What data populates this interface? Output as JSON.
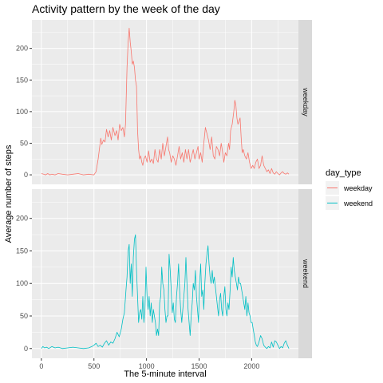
{
  "chart_data": {
    "type": "line",
    "title": "Activity pattern by the week of the day",
    "xlabel": "The 5-minute interval",
    "ylabel": "Average number of steps",
    "xlim": [
      -90,
      2445
    ],
    "ylim": [
      -15,
      245
    ],
    "x_ticks": [
      0,
      500,
      1000,
      1500,
      2000
    ],
    "y_ticks": [
      0,
      50,
      100,
      150,
      200
    ],
    "grid": true,
    "legend": {
      "title": "day_type",
      "position": "right"
    },
    "facets": [
      "weekday",
      "weekend"
    ],
    "series": [
      {
        "name": "weekday",
        "color": "#F8766D",
        "points": [
          [
            0,
            2
          ],
          [
            20,
            1
          ],
          [
            40,
            0
          ],
          [
            60,
            2
          ],
          [
            80,
            0
          ],
          [
            100,
            1
          ],
          [
            130,
            0
          ],
          [
            160,
            2
          ],
          [
            200,
            1
          ],
          [
            250,
            0
          ],
          [
            300,
            1
          ],
          [
            350,
            2
          ],
          [
            400,
            0
          ],
          [
            450,
            1
          ],
          [
            500,
            0
          ],
          [
            520,
            5
          ],
          [
            540,
            25
          ],
          [
            555,
            45
          ],
          [
            565,
            58
          ],
          [
            575,
            48
          ],
          [
            590,
            55
          ],
          [
            605,
            52
          ],
          [
            620,
            72
          ],
          [
            635,
            60
          ],
          [
            650,
            70
          ],
          [
            665,
            55
          ],
          [
            680,
            75
          ],
          [
            700,
            62
          ],
          [
            715,
            70
          ],
          [
            730,
            55
          ],
          [
            745,
            80
          ],
          [
            760,
            70
          ],
          [
            775,
            75
          ],
          [
            790,
            60
          ],
          [
            800,
            80
          ],
          [
            815,
            170
          ],
          [
            825,
            210
          ],
          [
            835,
            232
          ],
          [
            845,
            210
          ],
          [
            855,
            195
          ],
          [
            865,
            175
          ],
          [
            875,
            180
          ],
          [
            885,
            170
          ],
          [
            895,
            150
          ],
          [
            905,
            140
          ],
          [
            915,
            70
          ],
          [
            925,
            40
          ],
          [
            935,
            25
          ],
          [
            945,
            30
          ],
          [
            955,
            20
          ],
          [
            965,
            15
          ],
          [
            975,
            25
          ],
          [
            990,
            30
          ],
          [
            1005,
            20
          ],
          [
            1020,
            38
          ],
          [
            1035,
            20
          ],
          [
            1050,
            25
          ],
          [
            1065,
            18
          ],
          [
            1080,
            40
          ],
          [
            1095,
            25
          ],
          [
            1110,
            20
          ],
          [
            1125,
            40
          ],
          [
            1140,
            25
          ],
          [
            1155,
            50
          ],
          [
            1170,
            30
          ],
          [
            1185,
            45
          ],
          [
            1200,
            60
          ],
          [
            1210,
            40
          ],
          [
            1220,
            35
          ],
          [
            1235,
            20
          ],
          [
            1250,
            30
          ],
          [
            1265,
            25
          ],
          [
            1280,
            15
          ],
          [
            1295,
            30
          ],
          [
            1310,
            45
          ],
          [
            1325,
            25
          ],
          [
            1340,
            35
          ],
          [
            1355,
            20
          ],
          [
            1370,
            40
          ],
          [
            1385,
            25
          ],
          [
            1400,
            40
          ],
          [
            1415,
            20
          ],
          [
            1430,
            30
          ],
          [
            1445,
            40
          ],
          [
            1460,
            25
          ],
          [
            1475,
            35
          ],
          [
            1490,
            45
          ],
          [
            1500,
            25
          ],
          [
            1515,
            35
          ],
          [
            1530,
            20
          ],
          [
            1545,
            50
          ],
          [
            1560,
            75
          ],
          [
            1575,
            65
          ],
          [
            1590,
            55
          ],
          [
            1605,
            40
          ],
          [
            1620,
            60
          ],
          [
            1635,
            30
          ],
          [
            1650,
            25
          ],
          [
            1665,
            45
          ],
          [
            1680,
            40
          ],
          [
            1695,
            30
          ],
          [
            1710,
            50
          ],
          [
            1720,
            40
          ],
          [
            1735,
            20
          ],
          [
            1750,
            35
          ],
          [
            1765,
            30
          ],
          [
            1780,
            50
          ],
          [
            1790,
            40
          ],
          [
            1800,
            70
          ],
          [
            1815,
            80
          ],
          [
            1830,
            100
          ],
          [
            1840,
            118
          ],
          [
            1850,
            110
          ],
          [
            1860,
            90
          ],
          [
            1870,
            80
          ],
          [
            1880,
            85
          ],
          [
            1890,
            90
          ],
          [
            1900,
            60
          ],
          [
            1910,
            35
          ],
          [
            1920,
            40
          ],
          [
            1935,
            30
          ],
          [
            1950,
            25
          ],
          [
            1965,
            35
          ],
          [
            1980,
            20
          ],
          [
            1995,
            10
          ],
          [
            2010,
            15
          ],
          [
            2025,
            10
          ],
          [
            2040,
            20
          ],
          [
            2055,
            25
          ],
          [
            2070,
            10
          ],
          [
            2085,
            15
          ],
          [
            2100,
            30
          ],
          [
            2115,
            15
          ],
          [
            2130,
            10
          ],
          [
            2145,
            5
          ],
          [
            2160,
            8
          ],
          [
            2175,
            2
          ],
          [
            2190,
            10
          ],
          [
            2205,
            3
          ],
          [
            2220,
            1
          ],
          [
            2235,
            5
          ],
          [
            2250,
            2
          ],
          [
            2265,
            0
          ],
          [
            2280,
            3
          ],
          [
            2295,
            5
          ],
          [
            2310,
            2
          ],
          [
            2325,
            1
          ],
          [
            2340,
            3
          ],
          [
            2355,
            1
          ]
        ]
      },
      {
        "name": "weekend",
        "color": "#00BFC4",
        "points": [
          [
            0,
            0
          ],
          [
            15,
            3
          ],
          [
            30,
            1
          ],
          [
            50,
            2
          ],
          [
            70,
            0
          ],
          [
            100,
            3
          ],
          [
            130,
            1
          ],
          [
            160,
            2
          ],
          [
            200,
            0
          ],
          [
            250,
            1
          ],
          [
            300,
            2
          ],
          [
            350,
            1
          ],
          [
            400,
            0
          ],
          [
            450,
            1
          ],
          [
            480,
            3
          ],
          [
            500,
            5
          ],
          [
            520,
            8
          ],
          [
            540,
            3
          ],
          [
            560,
            5
          ],
          [
            580,
            2
          ],
          [
            600,
            8
          ],
          [
            620,
            12
          ],
          [
            640,
            5
          ],
          [
            660,
            10
          ],
          [
            680,
            8
          ],
          [
            700,
            15
          ],
          [
            720,
            25
          ],
          [
            740,
            18
          ],
          [
            760,
            30
          ],
          [
            775,
            45
          ],
          [
            790,
            55
          ],
          [
            805,
            90
          ],
          [
            815,
            110
          ],
          [
            825,
            150
          ],
          [
            835,
            160
          ],
          [
            845,
            100
          ],
          [
            855,
            130
          ],
          [
            865,
            80
          ],
          [
            875,
            140
          ],
          [
            885,
            168
          ],
          [
            895,
            175
          ],
          [
            905,
            120
          ],
          [
            915,
            80
          ],
          [
            925,
            40
          ],
          [
            935,
            55
          ],
          [
            945,
            60
          ],
          [
            955,
            45
          ],
          [
            965,
            80
          ],
          [
            975,
            40
          ],
          [
            985,
            60
          ],
          [
            995,
            125
          ],
          [
            1005,
            80
          ],
          [
            1015,
            60
          ],
          [
            1025,
            80
          ],
          [
            1035,
            50
          ],
          [
            1045,
            70
          ],
          [
            1055,
            40
          ],
          [
            1065,
            60
          ],
          [
            1075,
            50
          ],
          [
            1085,
            40
          ],
          [
            1095,
            20
          ],
          [
            1105,
            30
          ],
          [
            1115,
            20
          ],
          [
            1125,
            70
          ],
          [
            1135,
            80
          ],
          [
            1145,
            125
          ],
          [
            1155,
            100
          ],
          [
            1165,
            90
          ],
          [
            1175,
            60
          ],
          [
            1185,
            40
          ],
          [
            1195,
            50
          ],
          [
            1205,
            50
          ],
          [
            1215,
            145
          ],
          [
            1225,
            120
          ],
          [
            1235,
            90
          ],
          [
            1245,
            55
          ],
          [
            1255,
            70
          ],
          [
            1265,
            45
          ],
          [
            1275,
            40
          ],
          [
            1285,
            80
          ],
          [
            1295,
            100
          ],
          [
            1305,
            130
          ],
          [
            1315,
            90
          ],
          [
            1325,
            60
          ],
          [
            1335,
            40
          ],
          [
            1345,
            60
          ],
          [
            1355,
            80
          ],
          [
            1365,
            100
          ],
          [
            1375,
            140
          ],
          [
            1385,
            100
          ],
          [
            1395,
            60
          ],
          [
            1405,
            40
          ],
          [
            1415,
            20
          ],
          [
            1425,
            50
          ],
          [
            1435,
            70
          ],
          [
            1445,
            100
          ],
          [
            1455,
            90
          ],
          [
            1465,
            120
          ],
          [
            1475,
            80
          ],
          [
            1485,
            60
          ],
          [
            1495,
            40
          ],
          [
            1505,
            100
          ],
          [
            1515,
            130
          ],
          [
            1525,
            80
          ],
          [
            1535,
            90
          ],
          [
            1545,
            60
          ],
          [
            1555,
            100
          ],
          [
            1565,
            130
          ],
          [
            1575,
            145
          ],
          [
            1585,
            158
          ],
          [
            1595,
            130
          ],
          [
            1605,
            110
          ],
          [
            1615,
            100
          ],
          [
            1625,
            120
          ],
          [
            1635,
            100
          ],
          [
            1645,
            110
          ],
          [
            1655,
            95
          ],
          [
            1665,
            80
          ],
          [
            1675,
            65
          ],
          [
            1685,
            50
          ],
          [
            1695,
            75
          ],
          [
            1705,
            85
          ],
          [
            1715,
            60
          ],
          [
            1725,
            50
          ],
          [
            1735,
            80
          ],
          [
            1745,
            95
          ],
          [
            1755,
            60
          ],
          [
            1765,
            50
          ],
          [
            1775,
            70
          ],
          [
            1785,
            60
          ],
          [
            1795,
            90
          ],
          [
            1805,
            125
          ],
          [
            1815,
            110
          ],
          [
            1825,
            140
          ],
          [
            1835,
            120
          ],
          [
            1845,
            110
          ],
          [
            1855,
            100
          ],
          [
            1865,
            90
          ],
          [
            1875,
            110
          ],
          [
            1885,
            100
          ],
          [
            1895,
            100
          ],
          [
            1905,
            90
          ],
          [
            1915,
            80
          ],
          [
            1925,
            70
          ],
          [
            1935,
            60
          ],
          [
            1945,
            80
          ],
          [
            1955,
            50
          ],
          [
            1965,
            70
          ],
          [
            1975,
            55
          ],
          [
            1985,
            50
          ],
          [
            1995,
            40
          ],
          [
            2005,
            40
          ],
          [
            2015,
            30
          ],
          [
            2025,
            20
          ],
          [
            2035,
            10
          ],
          [
            2045,
            5
          ],
          [
            2055,
            3
          ],
          [
            2070,
            10
          ],
          [
            2085,
            20
          ],
          [
            2100,
            15
          ],
          [
            2115,
            5
          ],
          [
            2130,
            2
          ],
          [
            2145,
            0
          ],
          [
            2160,
            3
          ],
          [
            2175,
            1
          ],
          [
            2190,
            10
          ],
          [
            2205,
            2
          ],
          [
            2220,
            12
          ],
          [
            2235,
            10
          ],
          [
            2250,
            5
          ],
          [
            2265,
            0
          ],
          [
            2280,
            3
          ],
          [
            2295,
            1
          ],
          [
            2310,
            8
          ],
          [
            2325,
            12
          ],
          [
            2340,
            5
          ],
          [
            2355,
            0
          ]
        ]
      }
    ]
  }
}
